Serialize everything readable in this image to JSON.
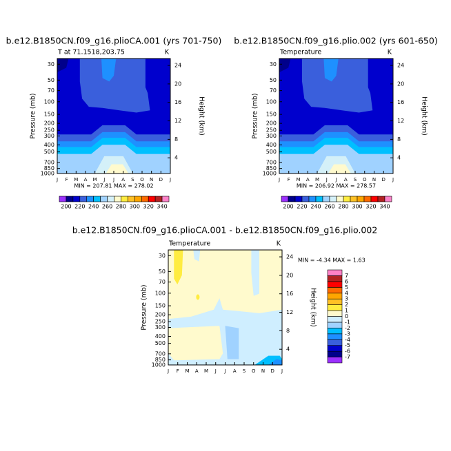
{
  "chart_data": [
    {
      "type": "contour",
      "title": "b.e12.B1850CN.f09_g16.plioCA.001 (yrs 701-750)",
      "subtitle": "T at 71.1518,203.75",
      "units": "K",
      "ylabel": "Pressure (mb)",
      "y2label": "Height (km)",
      "categories": [
        "J",
        "F",
        "M",
        "A",
        "M",
        "J",
        "J",
        "A",
        "S",
        "O",
        "N",
        "D",
        "J"
      ],
      "ylim": [
        1000,
        25
      ],
      "log_y": true,
      "yticks": [
        30,
        50,
        70,
        100,
        150,
        200,
        250,
        300,
        400,
        500,
        700,
        850,
        1000
      ],
      "y2lim": [
        0.6,
        25.5
      ],
      "y2ticks": [
        4,
        8,
        12,
        16,
        20,
        24
      ],
      "annotation": "MIN = 207.81 MAX = 278.02",
      "colorbar_orientation": "horizontal",
      "levels": [
        200,
        210,
        220,
        230,
        240,
        250,
        260,
        270,
        280,
        290,
        300,
        310,
        320,
        330,
        340
      ],
      "colorbar_ticks": [
        200,
        220,
        240,
        260,
        280,
        300,
        320,
        340
      ],
      "colors": [
        "#9b30ff",
        "#00008b",
        "#0000cd",
        "#3a5fdc",
        "#1e90ff",
        "#00bfff",
        "#a0d2ff",
        "#d4f0f8",
        "#fffacd",
        "#ffec40",
        "#ffc125",
        "#ffa500",
        "#ff6a00",
        "#ff0000",
        "#b22222",
        "#ff82c8"
      ]
    },
    {
      "type": "contour",
      "title": "b.e12.B1850CN.f09_g16.plio.002 (yrs 601-650)",
      "subtitle": "Temperature",
      "units": "K",
      "ylabel": "Pressure (mb)",
      "y2label": "Height (km)",
      "categories": [
        "J",
        "F",
        "M",
        "A",
        "M",
        "J",
        "J",
        "A",
        "S",
        "O",
        "N",
        "D",
        "J"
      ],
      "ylim": [
        1000,
        25
      ],
      "log_y": true,
      "yticks": [
        30,
        50,
        70,
        100,
        150,
        200,
        250,
        300,
        400,
        500,
        700,
        850,
        1000
      ],
      "y2lim": [
        0.6,
        25.5
      ],
      "y2ticks": [
        4,
        8,
        12,
        16,
        20,
        24
      ],
      "annotation": "MIN = 206.92 MAX = 278.57",
      "colorbar_orientation": "horizontal",
      "levels": [
        200,
        210,
        220,
        230,
        240,
        250,
        260,
        270,
        280,
        290,
        300,
        310,
        320,
        330,
        340
      ],
      "colorbar_ticks": [
        200,
        220,
        240,
        260,
        280,
        300,
        320,
        340
      ],
      "colors": [
        "#9b30ff",
        "#00008b",
        "#0000cd",
        "#3a5fdc",
        "#1e90ff",
        "#00bfff",
        "#a0d2ff",
        "#d4f0f8",
        "#fffacd",
        "#ffec40",
        "#ffc125",
        "#ffa500",
        "#ff6a00",
        "#ff0000",
        "#b22222",
        "#ff82c8"
      ]
    },
    {
      "type": "contour",
      "title": "b.e12.B1850CN.f09_g16.plioCA.001 - b.e12.B1850CN.f09_g16.plio.002",
      "subtitle": "Temperature",
      "units": "K",
      "ylabel": "Pressure (mb)",
      "y2label": "Height (km)",
      "categories": [
        "J",
        "F",
        "M",
        "A",
        "M",
        "J",
        "J",
        "A",
        "S",
        "O",
        "N",
        "D",
        "J"
      ],
      "ylim": [
        1000,
        25
      ],
      "log_y": true,
      "yticks": [
        30,
        50,
        70,
        100,
        150,
        200,
        250,
        300,
        400,
        500,
        700,
        850,
        1000
      ],
      "y2lim": [
        0.6,
        25.5
      ],
      "y2ticks": [
        4,
        8,
        12,
        16,
        20,
        24
      ],
      "annotation": "MIN = -4.34 MAX = 1.63",
      "colorbar_orientation": "vertical",
      "levels": [
        -7,
        -6,
        -5,
        -4,
        -3,
        -2,
        -1,
        0,
        1,
        2,
        3,
        4,
        5,
        6,
        7
      ],
      "colorbar_ticks": [
        -7,
        -6,
        -5,
        -4,
        -3,
        -2,
        -1,
        0,
        1,
        2,
        3,
        4,
        5,
        6,
        7
      ],
      "colors": [
        "#9b30ff",
        "#00008b",
        "#0000cd",
        "#3a5fdc",
        "#1e90ff",
        "#00bfff",
        "#a0d2ff",
        "#cfeeff",
        "#fffacd",
        "#ffec40",
        "#ffc125",
        "#ffa500",
        "#ff6a00",
        "#ff0000",
        "#b22222",
        "#ff82c8"
      ]
    }
  ]
}
